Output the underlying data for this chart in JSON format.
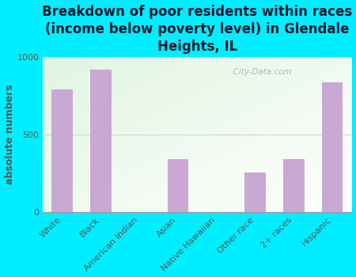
{
  "categories": [
    "White",
    "Black",
    "American Indian",
    "Asian",
    "Native Hawaiian",
    "Other race",
    "2+ races",
    "Hispanic"
  ],
  "values": [
    790,
    920,
    0,
    340,
    0,
    255,
    340,
    840
  ],
  "bar_color": "#c9a8d4",
  "title": "Breakdown of poor residents within races\n(income below poverty level) in Glendale\nHeights, IL",
  "ylabel": "absolute numbers",
  "ylim": [
    0,
    1000
  ],
  "yticks": [
    0,
    500,
    1000
  ],
  "background_outer": "#00eeff",
  "watermark": "  City-Data.com",
  "title_fontsize": 12,
  "title_color": "#1a1a2e",
  "ylabel_fontsize": 9,
  "ylabel_color": "#555555",
  "tick_fontsize": 8,
  "tick_color": "#555555"
}
